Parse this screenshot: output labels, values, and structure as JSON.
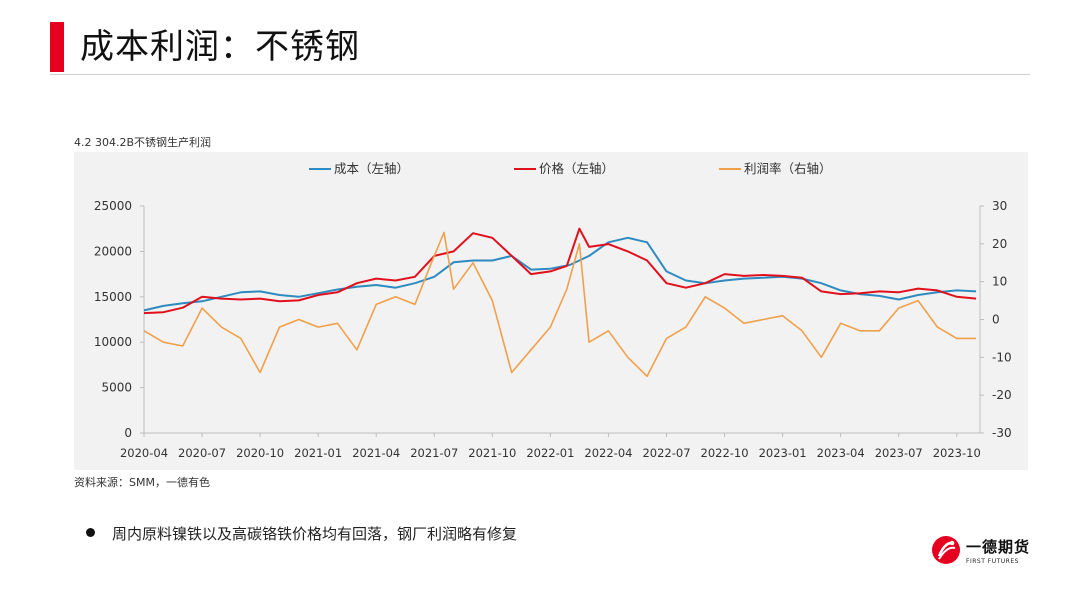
{
  "page": {
    "title": "成本利润：不锈钢",
    "caption": "4.2 304.2B不锈钢生产利润",
    "source": "资料来源：SMM，一德有色",
    "bullet": "周内原料镍铁以及高碳铬铁价格均有回落，钢厂利润略有修复",
    "logo_name": "一德期货",
    "logo_sub": "FIRST FUTURES",
    "accent_color": "#e6001f"
  },
  "chart_data": {
    "type": "line",
    "x_ticks": [
      "2020-04",
      "2020-07",
      "2020-10",
      "2021-01",
      "2021-04",
      "2021-07",
      "2021-10",
      "2022-01",
      "2022-04",
      "2022-07",
      "2022-10",
      "2023-01",
      "2023-04",
      "2023-07",
      "2023-10"
    ],
    "y_left_ticks": [
      "0",
      "5000",
      "10000",
      "15000",
      "20000",
      "25000"
    ],
    "y_right_ticks": [
      "-30",
      "-20",
      "-10",
      "0",
      "10",
      "20",
      "30"
    ],
    "ylim_left": [
      0,
      25000
    ],
    "ylim_right": [
      -30,
      30
    ],
    "legend_position": "top-center",
    "grid": false,
    "series": [
      {
        "name": "成本（左轴）",
        "axis": "left",
        "color": "#2e8bc0",
        "x": [
          "2020-04",
          "2020-05",
          "2020-06",
          "2020-07",
          "2020-08",
          "2020-09",
          "2020-10",
          "2020-11",
          "2020-12",
          "2021-01",
          "2021-02",
          "2021-03",
          "2021-04",
          "2021-05",
          "2021-06",
          "2021-07",
          "2021-08",
          "2021-09",
          "2021-10",
          "2021-11",
          "2021-12",
          "2022-01",
          "2022-02",
          "2022-03",
          "2022-04",
          "2022-05",
          "2022-06",
          "2022-07",
          "2022-08",
          "2022-09",
          "2022-10",
          "2022-11",
          "2022-12",
          "2023-01",
          "2023-02",
          "2023-03",
          "2023-04",
          "2023-05",
          "2023-06",
          "2023-07",
          "2023-08",
          "2023-09",
          "2023-10",
          "2023-11"
        ],
        "values": [
          13500,
          14000,
          14300,
          14500,
          15000,
          15500,
          15600,
          15200,
          15000,
          15400,
          15800,
          16100,
          16300,
          16000,
          16500,
          17200,
          18800,
          19000,
          19000,
          19500,
          18000,
          18100,
          18500,
          19500,
          21000,
          21500,
          21000,
          17800,
          16800,
          16500,
          16800,
          17000,
          17100,
          17200,
          17000,
          16500,
          15700,
          15300,
          15100,
          14700,
          15200,
          15500,
          15700,
          15600
        ]
      },
      {
        "name": "价格（左轴）",
        "axis": "left",
        "color": "#e0101c",
        "x": [
          "2020-04",
          "2020-05",
          "2020-06",
          "2020-07",
          "2020-08",
          "2020-09",
          "2020-10",
          "2020-11",
          "2020-12",
          "2021-01",
          "2021-02",
          "2021-03",
          "2021-04",
          "2021-05",
          "2021-06",
          "2021-07",
          "2021-08",
          "2021-09",
          "2021-10",
          "2021-11",
          "2021-12",
          "2022-01",
          "2022-02",
          "2022-02",
          "2022-03",
          "2022-04",
          "2022-05",
          "2022-06",
          "2022-07",
          "2022-08",
          "2022-09",
          "2022-10",
          "2022-11",
          "2022-12",
          "2023-01",
          "2023-02",
          "2023-03",
          "2023-04",
          "2023-05",
          "2023-06",
          "2023-07",
          "2023-08",
          "2023-09",
          "2023-10",
          "2023-11"
        ],
        "values": [
          13200,
          13300,
          13800,
          15000,
          14800,
          14700,
          14800,
          14500,
          14600,
          15200,
          15500,
          16500,
          17000,
          16800,
          17200,
          19500,
          20000,
          22000,
          21500,
          19500,
          17500,
          17800,
          18400,
          22500,
          20500,
          20800,
          20000,
          19000,
          16500,
          16000,
          16500,
          17500,
          17300,
          17400,
          17300,
          17100,
          15600,
          15300,
          15400,
          15600,
          15500,
          15900,
          15700,
          15000,
          14800
        ]
      },
      {
        "name": "利润率（右轴）",
        "axis": "right",
        "color": "#f0a04b",
        "x": [
          "2020-04",
          "2020-05",
          "2020-06",
          "2020-07",
          "2020-08",
          "2020-09",
          "2020-10",
          "2020-11",
          "2020-12",
          "2021-01",
          "2021-02",
          "2021-03",
          "2021-04",
          "2021-05",
          "2021-06",
          "2021-07",
          "2021-07",
          "2021-08",
          "2021-09",
          "2021-10",
          "2021-11",
          "2021-12",
          "2022-01",
          "2022-02",
          "2022-02",
          "2022-03",
          "2022-04",
          "2022-05",
          "2022-06",
          "2022-07",
          "2022-08",
          "2022-09",
          "2022-10",
          "2022-11",
          "2022-12",
          "2023-01",
          "2023-02",
          "2023-03",
          "2023-04",
          "2023-05",
          "2023-06",
          "2023-07",
          "2023-08",
          "2023-09",
          "2023-10",
          "2023-11"
        ],
        "values": [
          -3,
          -6,
          -7,
          3,
          -2,
          -5,
          -14,
          -2,
          0,
          -2,
          -1,
          -8,
          4,
          6,
          4,
          15,
          23,
          8,
          15,
          5,
          -14,
          -8,
          -2,
          8,
          20,
          -6,
          -3,
          -10,
          -15,
          -5,
          -2,
          6,
          3,
          -1,
          0,
          1,
          -3,
          -10,
          -1,
          -3,
          -3,
          3,
          5,
          -2,
          -5,
          -5
        ]
      }
    ]
  }
}
